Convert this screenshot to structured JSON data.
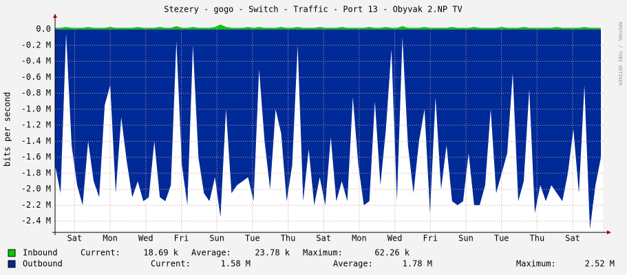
{
  "chart_data": {
    "type": "area",
    "title": "Stezery - gogo - Switch - Traffic - Port 13 - Obyvak 2.NP TV",
    "ylabel": "bits per second",
    "side_label": "RRDTOOL / TOBI OETIKER",
    "xlim": [
      0,
      30.8
    ],
    "xticks": [
      {
        "value": 1.1,
        "label": "Sat"
      },
      {
        "value": 3.1,
        "label": "Mon"
      },
      {
        "value": 5.1,
        "label": "Wed"
      },
      {
        "value": 7.1,
        "label": "Fri"
      },
      {
        "value": 9.1,
        "label": "Sun"
      },
      {
        "value": 11.1,
        "label": "Tue"
      },
      {
        "value": 13.1,
        "label": "Thu"
      },
      {
        "value": 15.1,
        "label": "Sat"
      },
      {
        "value": 17.1,
        "label": "Mon"
      },
      {
        "value": 19.1,
        "label": "Wed"
      },
      {
        "value": 21.1,
        "label": "Fri"
      },
      {
        "value": 23.1,
        "label": "Sun"
      },
      {
        "value": 25.1,
        "label": "Tue"
      },
      {
        "value": 27.1,
        "label": "Thu"
      },
      {
        "value": 29.1,
        "label": "Sat"
      }
    ],
    "ylim": [
      -2.54,
      0.04
    ],
    "yticks": [
      {
        "value": 0,
        "label": "0.0"
      },
      {
        "value": -0.2,
        "label": "-0.2 M"
      },
      {
        "value": -0.4,
        "label": "-0.4 M"
      },
      {
        "value": -0.6,
        "label": "-0.6 M"
      },
      {
        "value": -0.8,
        "label": "-0.8 M"
      },
      {
        "value": -1.0,
        "label": "-1.0 M"
      },
      {
        "value": -1.2,
        "label": "-1.2 M"
      },
      {
        "value": -1.4,
        "label": "-1.4 M"
      },
      {
        "value": -1.6,
        "label": "-1.6 M"
      },
      {
        "value": -1.8,
        "label": "-1.8 M"
      },
      {
        "value": -2.0,
        "label": "-2.0 M"
      },
      {
        "value": -2.2,
        "label": "-2.2 M"
      },
      {
        "value": -2.4,
        "label": "-2.4 M"
      }
    ],
    "grid": true,
    "x": [
      0,
      0.31,
      0.62,
      0.93,
      1.24,
      1.55,
      1.86,
      2.17,
      2.48,
      2.79,
      3.1,
      3.41,
      3.72,
      4.03,
      4.34,
      4.65,
      4.96,
      5.27,
      5.58,
      5.89,
      6.2,
      6.51,
      6.82,
      7.13,
      7.44,
      7.75,
      8.06,
      8.37,
      8.68,
      8.99,
      9.3,
      9.61,
      9.92,
      10.23,
      10.54,
      10.85,
      11.16,
      11.47,
      11.78,
      12.09,
      12.4,
      12.71,
      13.02,
      13.33,
      13.64,
      13.95,
      14.26,
      14.57,
      14.88,
      15.19,
      15.5,
      15.81,
      16.12,
      16.43,
      16.74,
      17.05,
      17.36,
      17.67,
      17.98,
      18.29,
      18.6,
      18.91,
      19.22,
      19.53,
      19.84,
      20.15,
      20.46,
      20.77,
      21.08,
      21.39,
      21.7,
      22.01,
      22.32,
      22.63,
      22.94,
      23.25,
      23.56,
      23.87,
      24.18,
      24.49,
      24.8,
      25.11,
      25.42,
      25.73,
      26.04,
      26.35,
      26.66,
      26.97,
      27.28,
      27.59,
      27.9,
      28.21,
      28.52,
      28.83,
      29.14,
      29.45,
      29.76,
      30.07,
      30.38,
      30.69
    ],
    "series": [
      {
        "name": "Inbound",
        "color": "#00cc00",
        "legend_stats": [
          {
            "label": "Current:",
            "text": "18.69 k"
          },
          {
            "label": "Average:",
            "text": "23.78 k"
          },
          {
            "label": "Maximum:",
            "text": "62.26 k"
          }
        ],
        "values": [
          0.02,
          0.02,
          0.03,
          0.02,
          0.02,
          0.02,
          0.03,
          0.02,
          0.02,
          0.02,
          0.03,
          0.02,
          0.02,
          0.02,
          0.02,
          0.03,
          0.02,
          0.02,
          0.02,
          0.03,
          0.02,
          0.02,
          0.04,
          0.02,
          0.02,
          0.03,
          0.02,
          0.02,
          0.02,
          0.03,
          0.06,
          0.03,
          0.02,
          0.02,
          0.02,
          0.03,
          0.02,
          0.03,
          0.02,
          0.02,
          0.02,
          0.03,
          0.02,
          0.02,
          0.03,
          0.02,
          0.02,
          0.02,
          0.03,
          0.02,
          0.02,
          0.02,
          0.03,
          0.02,
          0.02,
          0.02,
          0.02,
          0.03,
          0.02,
          0.02,
          0.03,
          0.02,
          0.02,
          0.04,
          0.02,
          0.02,
          0.02,
          0.03,
          0.02,
          0.02,
          0.02,
          0.02,
          0.03,
          0.02,
          0.02,
          0.02,
          0.03,
          0.02,
          0.02,
          0.02,
          0.02,
          0.03,
          0.02,
          0.02,
          0.02,
          0.03,
          0.02,
          0.02,
          0.02,
          0.02,
          0.02,
          0.03,
          0.02,
          0.02,
          0.02,
          0.02,
          0.03,
          0.02,
          0.02,
          0.02
        ]
      },
      {
        "name": "Outbound",
        "color": "#002a97",
        "legend_stats": [
          {
            "label": "Current:",
            "text": "1.58 M"
          },
          {
            "label": "Average:",
            "text": "1.78 M"
          },
          {
            "label": "Maximum:",
            "text": "2.52 M"
          }
        ],
        "values": [
          -1.7,
          -2.05,
          -0.05,
          -1.45,
          -1.95,
          -2.2,
          -1.4,
          -1.9,
          -2.1,
          -0.95,
          -0.7,
          -2.05,
          -1.1,
          -1.65,
          -2.1,
          -1.9,
          -2.15,
          -2.1,
          -1.4,
          -2.1,
          -2.15,
          -1.95,
          -0.15,
          -1.7,
          -2.2,
          -0.2,
          -1.6,
          -2.05,
          -2.15,
          -1.85,
          -2.35,
          -1.0,
          -2.05,
          -1.95,
          -1.9,
          -1.85,
          -2.15,
          -0.5,
          -1.4,
          -2.0,
          -1.0,
          -1.3,
          -2.15,
          -1.7,
          -0.2,
          -2.15,
          -1.5,
          -2.2,
          -1.85,
          -2.2,
          -1.35,
          -2.15,
          -1.9,
          -2.15,
          -0.85,
          -1.7,
          -2.2,
          -2.15,
          -0.9,
          -1.95,
          -1.25,
          -0.25,
          -2.15,
          -0.1,
          -1.45,
          -2.05,
          -1.4,
          -1.0,
          -2.3,
          -0.85,
          -2.0,
          -1.45,
          -2.15,
          -2.2,
          -2.15,
          -1.55,
          -2.2,
          -2.2,
          -1.95,
          -1.0,
          -2.05,
          -1.8,
          -1.55,
          -0.55,
          -2.15,
          -1.9,
          -0.75,
          -2.3,
          -1.95,
          -2.15,
          -1.95,
          -2.05,
          -2.15,
          -1.8,
          -1.25,
          -2.05,
          -0.7,
          -2.5,
          -1.95,
          -1.6
        ]
      }
    ]
  }
}
